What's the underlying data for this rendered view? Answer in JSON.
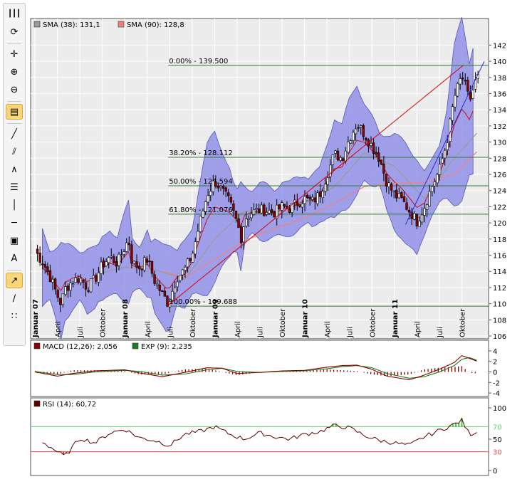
{
  "toolbar": {
    "items": [
      {
        "name": "grip-icon",
        "glyph": "┃┃┃",
        "active": false
      },
      {
        "name": "refresh-icon",
        "glyph": "⟳",
        "active": false
      },
      {
        "name": "crosshair-icon",
        "glyph": "✛",
        "active": false
      },
      {
        "name": "zoom-in-icon",
        "glyph": "⊕",
        "active": false
      },
      {
        "name": "zoom-out-icon",
        "glyph": "⊖",
        "active": false
      },
      {
        "name": "chart-type-icon",
        "glyph": "▤",
        "active": true
      },
      {
        "name": "trendline-icon",
        "glyph": "╱",
        "active": false
      },
      {
        "name": "channel-icon",
        "glyph": "⫽",
        "active": false
      },
      {
        "name": "fibonacci-arc-icon",
        "glyph": "∧",
        "active": false
      },
      {
        "name": "fibonacci-retracement-icon",
        "glyph": "☰",
        "active": false
      },
      {
        "name": "vertical-line-icon",
        "glyph": "│",
        "active": false
      },
      {
        "name": "horizontal-line-icon",
        "glyph": "─",
        "active": false
      },
      {
        "name": "rectangle-icon",
        "glyph": "▣",
        "active": false
      },
      {
        "name": "text-tool-icon",
        "glyph": "A",
        "active": false
      },
      {
        "name": "fibonacci-fan-icon",
        "glyph": "↗",
        "active": true
      },
      {
        "name": "ray-icon",
        "glyph": "∕",
        "active": false
      },
      {
        "name": "grid-options-icon",
        "glyph": "∷",
        "active": false
      }
    ]
  },
  "chart_data": [
    {
      "type": "candlestick",
      "panel": "price",
      "legend": [
        {
          "label": "SMA (38): 131,1",
          "color": "#9a9a9a"
        },
        {
          "label": "SMA (90): 128,8",
          "color": "#f08080"
        }
      ],
      "ylim": [
        106,
        142
      ],
      "y_ticks": [
        "106",
        "108",
        "110",
        "112",
        "114",
        "116",
        "118",
        "120",
        "122",
        "124",
        "126",
        "128",
        "130",
        "132",
        "134",
        "136",
        "138",
        "140",
        "142"
      ],
      "x_labels": [
        "Januar 07",
        "April",
        "Juli",
        "Oktober",
        "Januar 08",
        "April",
        "Juli",
        "Oktober",
        "Januar 09",
        "April",
        "Juli",
        "Oktober",
        "Januar 10",
        "April",
        "Juli",
        "Oktober",
        "Januar 11",
        "April",
        "Juli",
        "Oktober"
      ],
      "x_bold": [
        "Januar 07",
        "Januar 08",
        "Januar 09",
        "Januar 10",
        "Januar 11"
      ],
      "x_month_index": [
        0,
        3,
        6,
        9,
        12,
        15,
        18,
        21,
        24,
        27,
        30,
        33,
        36,
        39,
        42,
        45,
        48,
        51,
        54,
        57
      ],
      "months_total": 60,
      "fibonacci_levels": [
        {
          "label": "0.00% - 139.500",
          "value": 139.5
        },
        {
          "label": "38.20% - 128.112",
          "value": 128.112
        },
        {
          "label": "50.00% - 124.594",
          "value": 124.594
        },
        {
          "label": "61.80% - 121.076",
          "value": 121.076
        },
        {
          "label": "100.00% - 109.688",
          "value": 109.688
        }
      ],
      "close_path": [
        [
          0,
          116.6
        ],
        [
          1,
          115.2
        ],
        [
          2,
          113.4
        ],
        [
          3,
          111.0
        ],
        [
          3.5,
          110.0
        ],
        [
          4,
          111.8
        ],
        [
          5,
          112.8
        ],
        [
          6,
          113.2
        ],
        [
          7,
          112.0
        ],
        [
          8,
          113.0
        ],
        [
          9,
          114.8
        ],
        [
          10,
          115.8
        ],
        [
          11,
          115.0
        ],
        [
          12,
          117.0
        ],
        [
          12.5,
          118.0
        ],
        [
          13,
          115.0
        ],
        [
          14,
          114.5
        ],
        [
          15,
          115.5
        ],
        [
          16,
          112.8
        ],
        [
          17,
          111.2
        ],
        [
          17.8,
          110.0
        ],
        [
          18.5,
          112.0
        ],
        [
          19,
          113.3
        ],
        [
          20,
          114.2
        ],
        [
          21,
          116.0
        ],
        [
          22,
          120.0
        ],
        [
          23,
          123.5
        ],
        [
          24,
          125.2
        ],
        [
          25,
          124.0
        ],
        [
          26,
          122.5
        ],
        [
          27,
          120.0
        ],
        [
          27.6,
          118.0
        ],
        [
          28,
          120.5
        ],
        [
          29,
          121.3
        ],
        [
          30,
          121.6
        ],
        [
          31,
          121.5
        ],
        [
          32,
          121.3
        ],
        [
          33,
          122.0
        ],
        [
          34,
          121.8
        ],
        [
          35,
          122.5
        ],
        [
          36,
          123.0
        ],
        [
          37,
          122.6
        ],
        [
          38,
          123.5
        ],
        [
          39,
          126.0
        ],
        [
          40,
          128.5
        ],
        [
          41,
          128.0
        ],
        [
          42,
          130.5
        ],
        [
          43,
          132.3
        ],
        [
          44,
          131.0
        ],
        [
          45,
          129.5
        ],
        [
          46,
          128.0
        ],
        [
          47,
          125.0
        ],
        [
          48,
          123.5
        ],
        [
          49,
          122.8
        ],
        [
          50,
          121.5
        ],
        [
          51,
          120.2
        ],
        [
          52,
          122.0
        ],
        [
          53,
          124.5
        ],
        [
          54,
          126.5
        ],
        [
          55,
          130.0
        ],
        [
          56,
          135.5
        ],
        [
          57,
          138.2
        ],
        [
          57.6,
          136.5
        ],
        [
          58,
          135.0
        ],
        [
          59,
          138.0
        ]
      ],
      "sma38_path": [
        [
          8,
          113.6
        ],
        [
          12,
          114.5
        ],
        [
          16,
          114.2
        ],
        [
          20,
          113.0
        ],
        [
          24,
          118.0
        ],
        [
          28,
          121.5
        ],
        [
          32,
          121.0
        ],
        [
          36,
          122.4
        ],
        [
          40,
          124.5
        ],
        [
          44,
          128.7
        ],
        [
          48,
          127.0
        ],
        [
          52,
          123.0
        ],
        [
          56,
          128.0
        ],
        [
          59,
          131.1
        ]
      ],
      "sma90_path": [
        [
          17,
          114.0
        ],
        [
          20,
          113.2
        ],
        [
          24,
          115.5
        ],
        [
          28,
          117.8
        ],
        [
          32,
          119.3
        ],
        [
          36,
          120.6
        ],
        [
          40,
          122.4
        ],
        [
          44,
          124.5
        ],
        [
          48,
          124.9
        ],
        [
          52,
          125.0
        ],
        [
          56,
          126.0
        ],
        [
          59,
          128.8
        ]
      ],
      "bollinger_band_width": 2.9,
      "trendlines": [
        {
          "color": "#dd0000",
          "from": [
            17.8,
            109.8
          ],
          "to": [
            57.2,
            139.5
          ]
        },
        {
          "color": "#2b2bd6",
          "from": [
            49.5,
            119.8
          ],
          "to": [
            60,
            140.0
          ]
        }
      ]
    },
    {
      "type": "histogram",
      "panel": "macd",
      "legend": [
        {
          "label": "MACD (12,26): 2,056",
          "color": "#8b0000"
        },
        {
          "label": "EXP (9): 2,235",
          "color": "#1e7a1e"
        }
      ],
      "ylim": [
        -4.5,
        4.8
      ],
      "y_ticks": [
        "-4",
        "-2",
        "0",
        "2",
        "4"
      ],
      "macd_path": [
        [
          0,
          0.0
        ],
        [
          3,
          -0.8
        ],
        [
          5,
          -0.3
        ],
        [
          8,
          0.2
        ],
        [
          12,
          0.4
        ],
        [
          14,
          -0.2
        ],
        [
          17,
          -0.9
        ],
        [
          20,
          -0.1
        ],
        [
          23,
          0.8
        ],
        [
          25,
          0.7
        ],
        [
          27,
          -0.3
        ],
        [
          30,
          -0.1
        ],
        [
          33,
          0.2
        ],
        [
          36,
          0.3
        ],
        [
          39,
          0.9
        ],
        [
          41,
          1.2
        ],
        [
          43,
          1.3
        ],
        [
          45,
          0.5
        ],
        [
          47,
          -0.8
        ],
        [
          50,
          -1.5
        ],
        [
          52,
          -0.6
        ],
        [
          54,
          0.5
        ],
        [
          56,
          1.8
        ],
        [
          57,
          3.1
        ],
        [
          58,
          2.6
        ],
        [
          59,
          2.056
        ]
      ],
      "signal_path": [
        [
          0,
          0.1
        ],
        [
          3,
          -0.5
        ],
        [
          5,
          -0.5
        ],
        [
          8,
          0.0
        ],
        [
          12,
          0.3
        ],
        [
          14,
          0.1
        ],
        [
          17,
          -0.6
        ],
        [
          20,
          -0.4
        ],
        [
          23,
          0.4
        ],
        [
          25,
          0.7
        ],
        [
          27,
          0.1
        ],
        [
          30,
          -0.1
        ],
        [
          33,
          0.1
        ],
        [
          36,
          0.2
        ],
        [
          39,
          0.6
        ],
        [
          41,
          1.0
        ],
        [
          43,
          1.2
        ],
        [
          45,
          0.8
        ],
        [
          47,
          -0.3
        ],
        [
          50,
          -1.2
        ],
        [
          52,
          -0.9
        ],
        [
          54,
          0.0
        ],
        [
          56,
          1.2
        ],
        [
          57,
          2.4
        ],
        [
          58,
          2.7
        ],
        [
          59,
          2.235
        ]
      ]
    },
    {
      "type": "line",
      "panel": "rsi",
      "legend": [
        {
          "label": "RSI (14): 60,72",
          "color": "#5a0000"
        }
      ],
      "ylim": [
        -5,
        110
      ],
      "y_ticks": [
        "0",
        "50",
        "100"
      ],
      "reference_levels": [
        {
          "label": "70",
          "value": 70,
          "color": "#5fd35f"
        },
        {
          "label": "30",
          "value": 30,
          "color": "#e05050"
        }
      ],
      "rsi_path": [
        [
          1,
          46
        ],
        [
          3,
          30
        ],
        [
          4,
          22
        ],
        [
          6,
          52
        ],
        [
          8,
          44
        ],
        [
          10,
          60
        ],
        [
          12,
          66
        ],
        [
          14,
          52
        ],
        [
          16,
          48
        ],
        [
          18,
          40
        ],
        [
          20,
          58
        ],
        [
          22,
          62
        ],
        [
          24,
          70
        ],
        [
          26,
          58
        ],
        [
          28,
          50
        ],
        [
          30,
          60
        ],
        [
          32,
          54
        ],
        [
          34,
          50
        ],
        [
          36,
          58
        ],
        [
          38,
          62
        ],
        [
          40,
          72
        ],
        [
          42,
          68
        ],
        [
          44,
          56
        ],
        [
          46,
          48
        ],
        [
          48,
          44
        ],
        [
          50,
          40
        ],
        [
          52,
          54
        ],
        [
          54,
          64
        ],
        [
          56,
          74
        ],
        [
          57,
          80
        ],
        [
          58,
          58
        ],
        [
          59,
          60.72
        ]
      ]
    }
  ]
}
